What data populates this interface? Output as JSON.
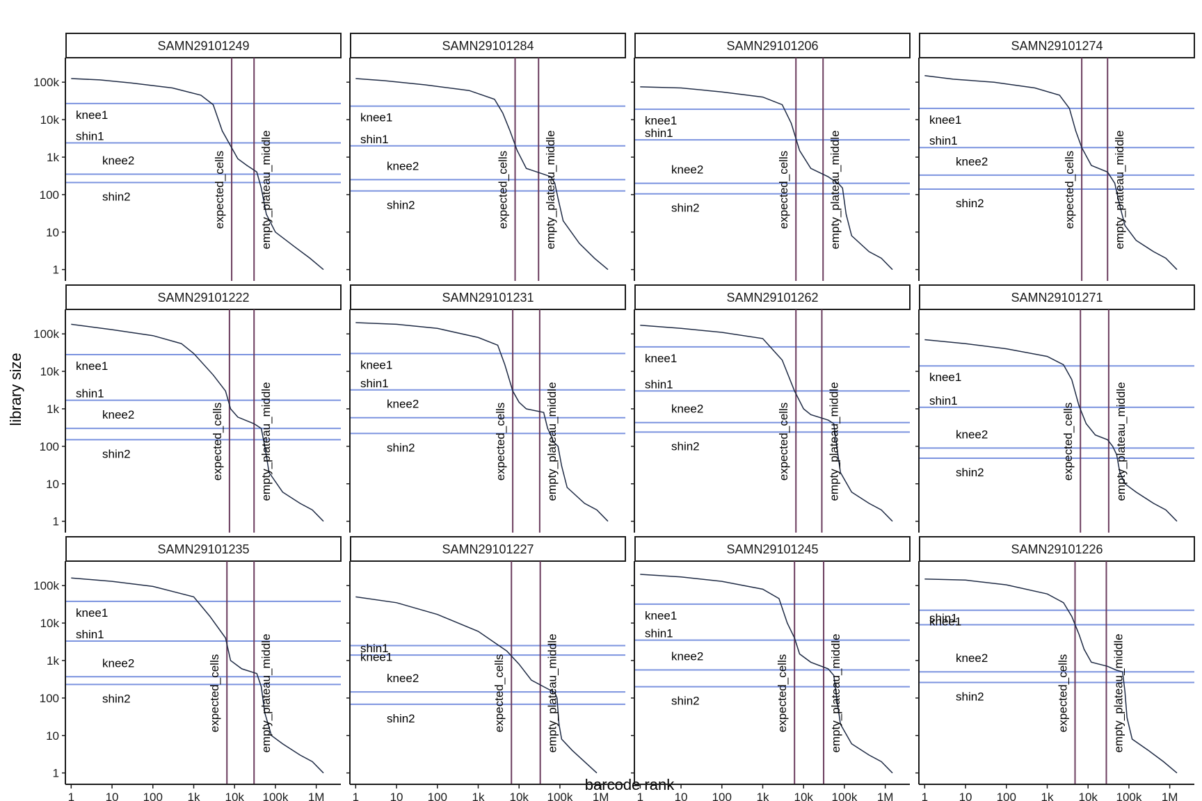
{
  "chart_data": {
    "type": "line",
    "facet_layout": "3 rows x 4 columns",
    "xlabel": "barcode rank",
    "ylabel": "library size",
    "x_scale": "log10",
    "y_scale": "log10",
    "xlim": [
      0.75,
      4000000
    ],
    "ylim": [
      0.7,
      450000
    ],
    "x_ticks": [
      {
        "value": 1,
        "label": "1"
      },
      {
        "value": 10,
        "label": "10"
      },
      {
        "value": 100,
        "label": "100"
      },
      {
        "value": 1000,
        "label": "1k"
      },
      {
        "value": 10000,
        "label": "10k"
      },
      {
        "value": 100000,
        "label": "100k"
      },
      {
        "value": 1000000,
        "label": "1M"
      }
    ],
    "y_ticks": [
      {
        "value": 1,
        "label": "1"
      },
      {
        "value": 10,
        "label": "10"
      },
      {
        "value": 100,
        "label": "100"
      },
      {
        "value": 1000,
        "label": "1k"
      },
      {
        "value": 10000,
        "label": "10k"
      },
      {
        "value": 100000,
        "label": "100k"
      }
    ],
    "colors": {
      "curve": "#1e2a44",
      "hline": "#7b93df",
      "vline": "#6b3d5e",
      "strip_border": "#1a1a1a"
    },
    "vline_labels": {
      "expected_cells": "expected_cells",
      "empty_plateau_middle": "empty_plateau_middle"
    },
    "hline_labels": {
      "knee1": "knee1",
      "shin1": "shin1",
      "knee2": "knee2",
      "shin2": "shin2"
    },
    "panels": [
      {
        "title": "SAMN29101249",
        "expected_cells": 8500,
        "empty_plateau_middle": 30000,
        "knee1": 27000,
        "shin1": 2400,
        "knee2": 350,
        "shin2": 210,
        "curve": [
          [
            1,
            125000
          ],
          [
            5,
            115000
          ],
          [
            30,
            95000
          ],
          [
            300,
            70000
          ],
          [
            1500,
            45000
          ],
          [
            3000,
            25000
          ],
          [
            5000,
            5000
          ],
          [
            8000,
            2000
          ],
          [
            12000,
            900
          ],
          [
            20000,
            600
          ],
          [
            35000,
            400
          ],
          [
            45000,
            150
          ],
          [
            60000,
            30
          ],
          [
            100000,
            10
          ],
          [
            300000,
            4
          ],
          [
            700000,
            2
          ],
          [
            1500000,
            1
          ]
        ]
      },
      {
        "title": "SAMN29101284",
        "expected_cells": 8000,
        "empty_plateau_middle": 30000,
        "knee1": 23000,
        "shin1": 2000,
        "knee2": 250,
        "shin2": 125,
        "curve": [
          [
            1,
            125000
          ],
          [
            5,
            110000
          ],
          [
            50,
            85000
          ],
          [
            600,
            60000
          ],
          [
            2500,
            35000
          ],
          [
            4000,
            15000
          ],
          [
            6000,
            5000
          ],
          [
            9000,
            1500
          ],
          [
            15000,
            500
          ],
          [
            40000,
            350
          ],
          [
            60000,
            300
          ],
          [
            75000,
            200
          ],
          [
            90000,
            80
          ],
          [
            120000,
            20
          ],
          [
            300000,
            5
          ],
          [
            700000,
            2
          ],
          [
            1500000,
            1
          ]
        ]
      },
      {
        "title": "SAMN29101206",
        "expected_cells": 6500,
        "empty_plateau_middle": 30000,
        "knee1": 19000,
        "shin1": 2900,
        "knee2": 200,
        "shin2": 105,
        "curve": [
          [
            1,
            75000
          ],
          [
            10,
            70000
          ],
          [
            100,
            55000
          ],
          [
            1000,
            40000
          ],
          [
            3000,
            25000
          ],
          [
            5000,
            8000
          ],
          [
            8000,
            1500
          ],
          [
            15000,
            500
          ],
          [
            40000,
            300
          ],
          [
            70000,
            200
          ],
          [
            90000,
            150
          ],
          [
            110000,
            30
          ],
          [
            150000,
            8
          ],
          [
            400000,
            3
          ],
          [
            800000,
            2
          ],
          [
            1500000,
            1
          ]
        ]
      },
      {
        "title": "SAMN29101274",
        "expected_cells": 7000,
        "empty_plateau_middle": 30000,
        "knee1": 20000,
        "shin1": 1800,
        "knee2": 330,
        "shin2": 140,
        "curve": [
          [
            1,
            150000
          ],
          [
            5,
            120000
          ],
          [
            50,
            100000
          ],
          [
            500,
            70000
          ],
          [
            2000,
            45000
          ],
          [
            3500,
            20000
          ],
          [
            5000,
            5000
          ],
          [
            7000,
            1800
          ],
          [
            12000,
            600
          ],
          [
            30000,
            400
          ],
          [
            45000,
            200
          ],
          [
            60000,
            50
          ],
          [
            80000,
            15
          ],
          [
            150000,
            6
          ],
          [
            400000,
            3
          ],
          [
            800000,
            2
          ],
          [
            1500000,
            1
          ]
        ]
      },
      {
        "title": "SAMN29101222",
        "expected_cells": 7500,
        "empty_plateau_middle": 30000,
        "knee1": 28000,
        "shin1": 1700,
        "knee2": 300,
        "shin2": 150,
        "curve": [
          [
            1,
            180000
          ],
          [
            10,
            130000
          ],
          [
            100,
            90000
          ],
          [
            500,
            55000
          ],
          [
            1000,
            30000
          ],
          [
            3000,
            8000
          ],
          [
            6000,
            3000
          ],
          [
            8000,
            1000
          ],
          [
            12000,
            600
          ],
          [
            30000,
            400
          ],
          [
            45000,
            300
          ],
          [
            55000,
            100
          ],
          [
            70000,
            20
          ],
          [
            150000,
            6
          ],
          [
            400000,
            3
          ],
          [
            800000,
            2
          ],
          [
            1500000,
            1
          ]
        ]
      },
      {
        "title": "SAMN29101231",
        "expected_cells": 7000,
        "empty_plateau_middle": 32000,
        "knee1": 30000,
        "shin1": 3200,
        "knee2": 580,
        "shin2": 220,
        "curve": [
          [
            1,
            200000
          ],
          [
            10,
            180000
          ],
          [
            100,
            140000
          ],
          [
            1000,
            80000
          ],
          [
            3000,
            50000
          ],
          [
            4500,
            15000
          ],
          [
            7000,
            3000
          ],
          [
            10000,
            1500
          ],
          [
            15000,
            1000
          ],
          [
            40000,
            800
          ],
          [
            50000,
            300
          ],
          [
            60000,
            200
          ],
          [
            70000,
            130
          ],
          [
            90000,
            100
          ],
          [
            110000,
            30
          ],
          [
            150000,
            8
          ],
          [
            400000,
            3
          ],
          [
            800000,
            2
          ],
          [
            1500000,
            1
          ]
        ]
      },
      {
        "title": "SAMN29101262",
        "expected_cells": 6500,
        "empty_plateau_middle": 28000,
        "knee1": 45000,
        "shin1": 3000,
        "knee2": 430,
        "shin2": 240,
        "curve": [
          [
            1,
            170000
          ],
          [
            10,
            140000
          ],
          [
            100,
            110000
          ],
          [
            1000,
            75000
          ],
          [
            3000,
            20000
          ],
          [
            6000,
            3000
          ],
          [
            10000,
            1000
          ],
          [
            15000,
            700
          ],
          [
            40000,
            500
          ],
          [
            55000,
            400
          ],
          [
            65000,
            100
          ],
          [
            80000,
            20
          ],
          [
            150000,
            6
          ],
          [
            400000,
            3
          ],
          [
            800000,
            2
          ],
          [
            1500000,
            1
          ]
        ]
      },
      {
        "title": "SAMN29101271",
        "expected_cells": 6500,
        "empty_plateau_middle": 32000,
        "knee1": 14000,
        "shin1": 1100,
        "knee2": 90,
        "shin2": 48,
        "curve": [
          [
            1,
            70000
          ],
          [
            10,
            55000
          ],
          [
            100,
            40000
          ],
          [
            1000,
            25000
          ],
          [
            2500,
            15000
          ],
          [
            4000,
            6000
          ],
          [
            6000,
            1200
          ],
          [
            9000,
            400
          ],
          [
            15000,
            200
          ],
          [
            30000,
            150
          ],
          [
            40000,
            100
          ],
          [
            50000,
            60
          ],
          [
            60000,
            20
          ],
          [
            80000,
            10
          ],
          [
            150000,
            6
          ],
          [
            400000,
            3
          ],
          [
            800000,
            2
          ],
          [
            1500000,
            1
          ]
        ]
      },
      {
        "title": "SAMN29101235",
        "expected_cells": 6500,
        "empty_plateau_middle": 30000,
        "knee1": 38000,
        "shin1": 3300,
        "knee2": 370,
        "shin2": 230,
        "curve": [
          [
            1,
            160000
          ],
          [
            10,
            130000
          ],
          [
            100,
            95000
          ],
          [
            1000,
            50000
          ],
          [
            2500,
            15000
          ],
          [
            6000,
            4000
          ],
          [
            8000,
            1000
          ],
          [
            15000,
            600
          ],
          [
            35000,
            450
          ],
          [
            45000,
            200
          ],
          [
            55000,
            40
          ],
          [
            80000,
            10
          ],
          [
            150000,
            6
          ],
          [
            400000,
            3
          ],
          [
            800000,
            2
          ],
          [
            1500000,
            1
          ]
        ]
      },
      {
        "title": "SAMN29101227",
        "expected_cells": 6500,
        "empty_plateau_middle": 33000,
        "knee1": 2500,
        "shin1": 1400,
        "knee2": 145,
        "shin2": 68,
        "curve": [
          [
            1,
            50000
          ],
          [
            10,
            35000
          ],
          [
            100,
            17000
          ],
          [
            1000,
            6000
          ],
          [
            5000,
            1800
          ],
          [
            10000,
            800
          ],
          [
            20000,
            300
          ],
          [
            40000,
            200
          ],
          [
            75000,
            140
          ],
          [
            85000,
            100
          ],
          [
            95000,
            20
          ],
          [
            110000,
            8
          ],
          [
            200000,
            4
          ],
          [
            400000,
            2
          ],
          [
            800000,
            1
          ]
        ]
      },
      {
        "title": "SAMN29101245",
        "expected_cells": 6000,
        "empty_plateau_middle": 31000,
        "knee1": 32000,
        "shin1": 3500,
        "knee2": 560,
        "shin2": 200,
        "curve": [
          [
            1,
            200000
          ],
          [
            10,
            170000
          ],
          [
            100,
            130000
          ],
          [
            1000,
            80000
          ],
          [
            2500,
            45000
          ],
          [
            4000,
            10000
          ],
          [
            6000,
            4000
          ],
          [
            8000,
            1500
          ],
          [
            15000,
            900
          ],
          [
            40000,
            600
          ],
          [
            55000,
            400
          ],
          [
            65000,
            100
          ],
          [
            80000,
            20
          ],
          [
            150000,
            6
          ],
          [
            400000,
            3
          ],
          [
            800000,
            2
          ],
          [
            1500000,
            1
          ]
        ]
      },
      {
        "title": "SAMN29101226",
        "expected_cells": 4800,
        "empty_plateau_middle": 28000,
        "knee1": 22000,
        "shin1": 9000,
        "knee2": 500,
        "shin2": 260,
        "curve": [
          [
            1,
            150000
          ],
          [
            10,
            140000
          ],
          [
            100,
            105000
          ],
          [
            1000,
            60000
          ],
          [
            2500,
            35000
          ],
          [
            4000,
            15000
          ],
          [
            6000,
            5000
          ],
          [
            8000,
            2000
          ],
          [
            12000,
            900
          ],
          [
            30000,
            700
          ],
          [
            50000,
            550
          ],
          [
            70000,
            500
          ],
          [
            80000,
            150
          ],
          [
            90000,
            30
          ],
          [
            120000,
            8
          ],
          [
            300000,
            4
          ],
          [
            700000,
            2
          ],
          [
            1500000,
            1
          ]
        ]
      }
    ]
  }
}
